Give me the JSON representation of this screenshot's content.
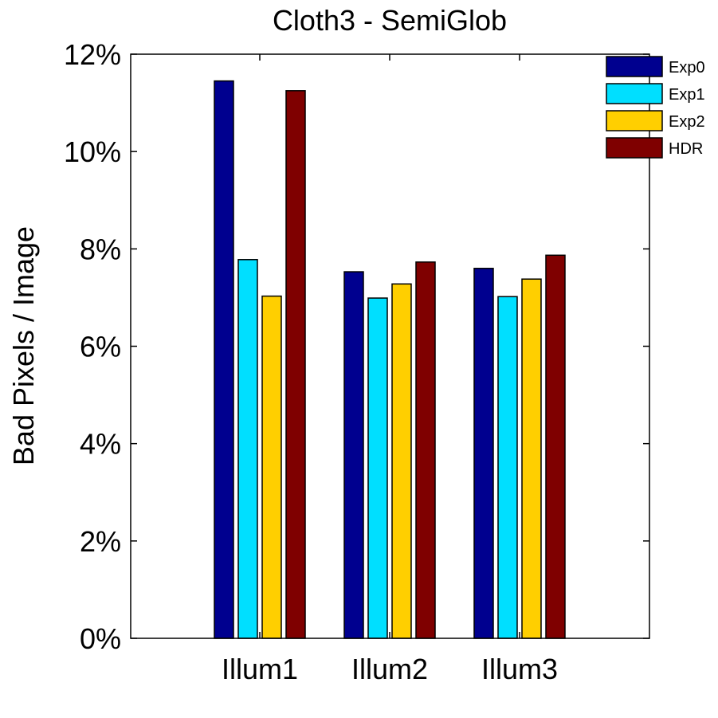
{
  "chart_data": {
    "type": "bar",
    "title": "Cloth3 - SemiGlob",
    "xlabel": "",
    "ylabel": "Bad Pixels / Image",
    "ylim": [
      0,
      12
    ],
    "yticks": [
      "0%",
      "2%",
      "4%",
      "6%",
      "8%",
      "10%",
      "12%"
    ],
    "ytick_values": [
      0,
      2,
      4,
      6,
      8,
      10,
      12
    ],
    "categories": [
      "Illum1",
      "Illum2",
      "Illum3"
    ],
    "series": [
      {
        "name": "Exp0",
        "color": "#00008F",
        "values": [
          11.45,
          7.53,
          7.6
        ]
      },
      {
        "name": "Exp1",
        "color": "#00DFFF",
        "values": [
          7.78,
          6.99,
          7.02
        ]
      },
      {
        "name": "Exp2",
        "color": "#FFCF00",
        "values": [
          7.03,
          7.28,
          7.38
        ]
      },
      {
        "name": "HDR",
        "color": "#7F0000",
        "values": [
          11.25,
          7.73,
          7.87
        ]
      }
    ],
    "legend_position": "top-right",
    "grid": false
  }
}
